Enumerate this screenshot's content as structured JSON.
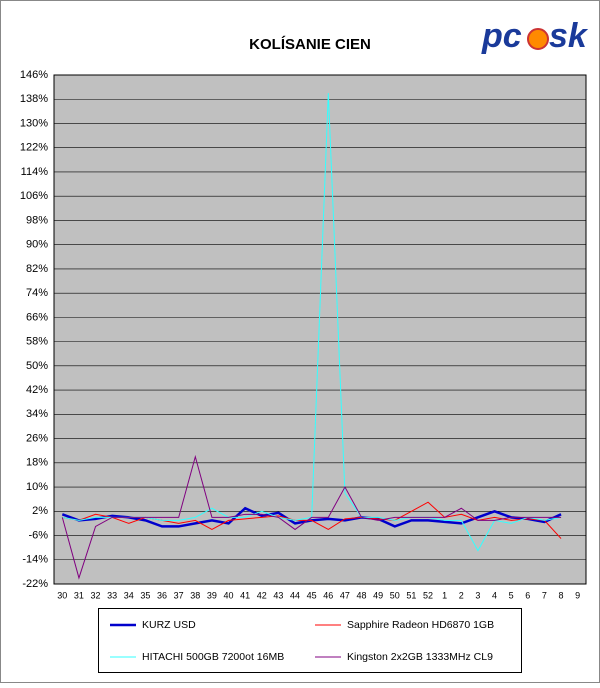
{
  "chart_data": {
    "type": "line",
    "title": "KOLÍSANIE CIEN",
    "logo": [
      "pc",
      "sk"
    ],
    "categories": [
      "30",
      "31",
      "32",
      "33",
      "34",
      "35",
      "36",
      "37",
      "38",
      "39",
      "40",
      "41",
      "42",
      "43",
      "44",
      "45",
      "46",
      "47",
      "48",
      "49",
      "50",
      "51",
      "52",
      "1",
      "2",
      "3",
      "4",
      "5",
      "6",
      "7",
      "8",
      "9"
    ],
    "ylim": [
      -22,
      146
    ],
    "yticks": [
      {
        "value": -22,
        "label": "-22%"
      },
      {
        "value": -14,
        "label": "-14%"
      },
      {
        "value": -6,
        "label": "-6%"
      },
      {
        "value": 2,
        "label": "2%"
      },
      {
        "value": 10,
        "label": "10%"
      },
      {
        "value": 18,
        "label": "18%"
      },
      {
        "value": 26,
        "label": "26%"
      },
      {
        "value": 34,
        "label": "34%"
      },
      {
        "value": 42,
        "label": "42%"
      },
      {
        "value": 50,
        "label": "50%"
      },
      {
        "value": 58,
        "label": "58%"
      },
      {
        "value": 66,
        "label": "66%"
      },
      {
        "value": 74,
        "label": "74%"
      },
      {
        "value": 82,
        "label": "82%"
      },
      {
        "value": 90,
        "label": "90%"
      },
      {
        "value": 98,
        "label": "98%"
      },
      {
        "value": 106,
        "label": "106%"
      },
      {
        "value": 114,
        "label": "114%"
      },
      {
        "value": 122,
        "label": "122%"
      },
      {
        "value": 130,
        "label": "130%"
      },
      {
        "value": 138,
        "label": "138%"
      },
      {
        "value": 146,
        "label": "146%"
      }
    ],
    "grid": true,
    "series": [
      {
        "name": "KURZ USD",
        "color": "#0000cc",
        "width": 2.5,
        "values": [
          1,
          -1,
          -0.5,
          0.5,
          0,
          -1,
          -3,
          -3,
          -2,
          -1,
          -2,
          3,
          0.5,
          1.5,
          -2,
          -1,
          -0.5,
          -1,
          0,
          -0.5,
          -3,
          -1,
          -1,
          -1.5,
          -2,
          0,
          2,
          0,
          -0.5,
          -1.5,
          1,
          null
        ]
      },
      {
        "name": "Sapphire Radeon HD6870 1GB",
        "color": "#ff0000",
        "width": 1,
        "values": [
          0,
          -1,
          1,
          0,
          -2,
          0,
          -1,
          -2,
          -1,
          -4,
          -1,
          -0.5,
          0,
          0.5,
          -1,
          -1,
          -4,
          -0.5,
          0,
          -0.5,
          -1,
          2,
          5,
          0,
          1,
          -1,
          0,
          -1,
          -0.5,
          -1,
          -7,
          null
        ]
      },
      {
        "name": "HITACHI 500GB 7200ot 16MB",
        "color": "#33ffff",
        "width": 1,
        "values": [
          0,
          -1,
          0,
          0,
          0,
          0,
          -1,
          -1,
          0,
          3,
          0,
          0,
          2,
          0,
          -1,
          0,
          140,
          8,
          0,
          0,
          -1,
          0,
          0,
          -1,
          -1,
          -11,
          -1,
          -2,
          0,
          -1,
          0,
          null
        ]
      },
      {
        "name": "Kingston 2x2GB 1333MHz CL9",
        "color": "#800080",
        "width": 1,
        "values": [
          0,
          -20,
          -3,
          0,
          0,
          0,
          0,
          0,
          20,
          0,
          0,
          1,
          1,
          0,
          -4,
          0,
          0,
          10,
          0,
          -1,
          0,
          0,
          0,
          0,
          3,
          -1,
          -1,
          0,
          0,
          0,
          0,
          null
        ]
      }
    ]
  }
}
